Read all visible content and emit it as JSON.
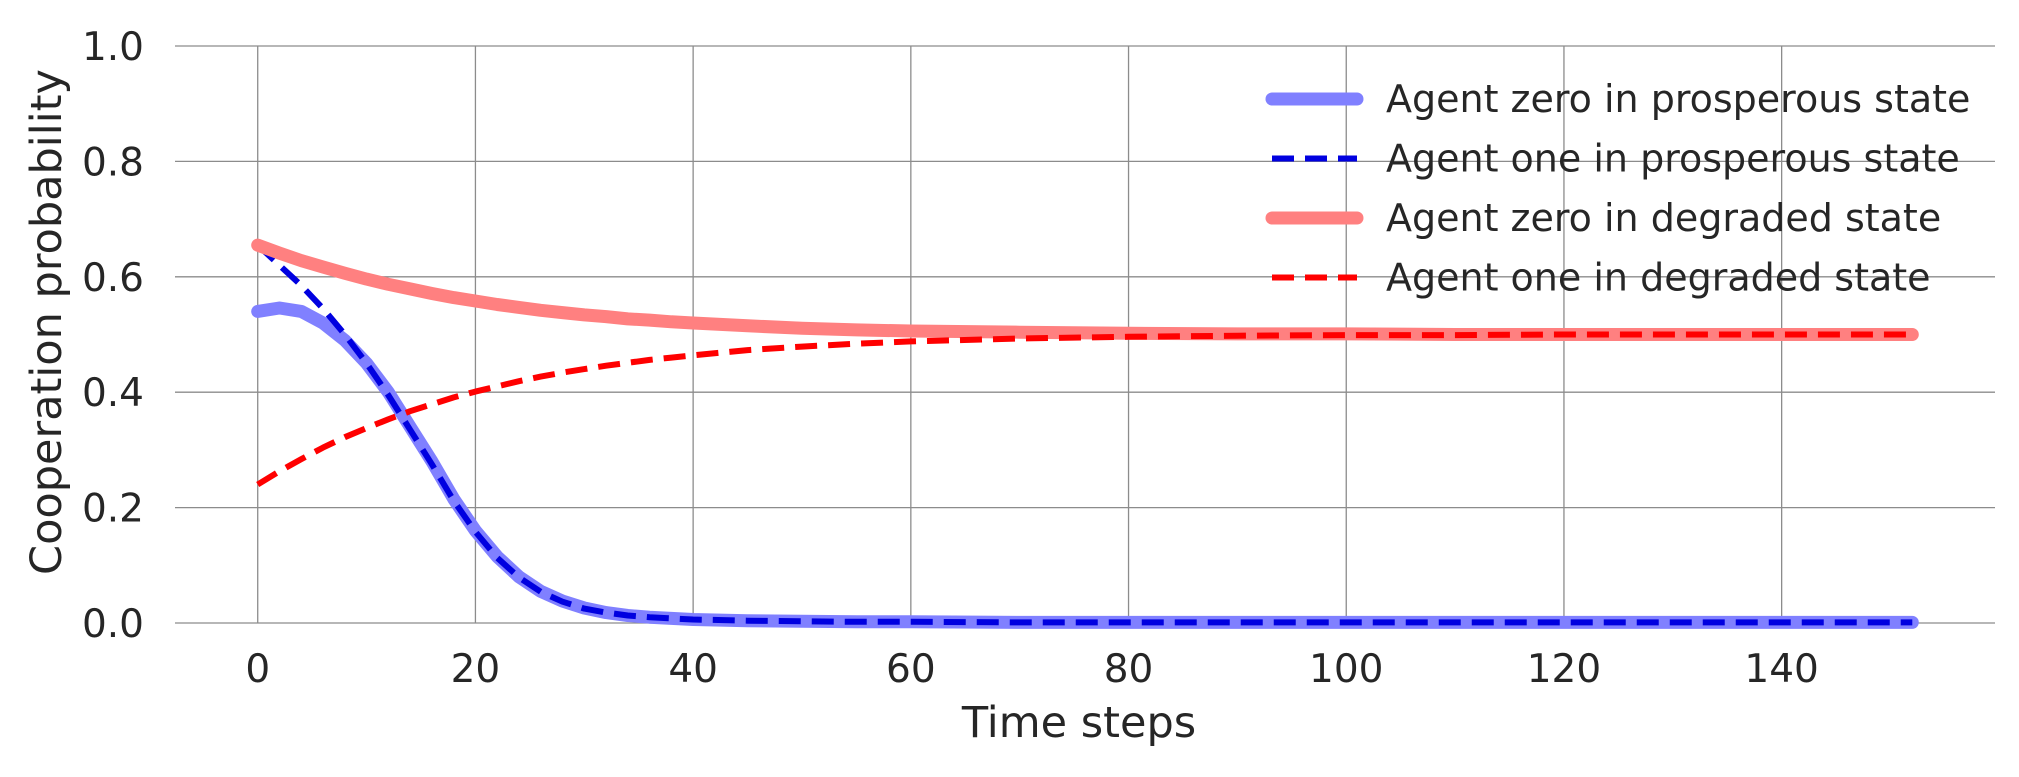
{
  "chart_data": {
    "type": "line",
    "title": "",
    "xlabel": "Time steps",
    "ylabel": "Cooperation probability",
    "xlim": [
      -7.6,
      159.6
    ],
    "ylim": [
      0,
      1
    ],
    "xticks": [
      0,
      20,
      40,
      60,
      80,
      100,
      120,
      140
    ],
    "xtick_labels": [
      "0",
      "20",
      "40",
      "60",
      "80",
      "100",
      "120",
      "140"
    ],
    "yticks": [
      0.0,
      0.2,
      0.4,
      0.6,
      0.8,
      1.0
    ],
    "ytick_labels": [
      "0.0",
      "0.2",
      "0.4",
      "0.6",
      "0.8",
      "1.0"
    ],
    "grid": true,
    "legend_position": "top-right",
    "x": [
      0,
      2,
      4,
      6,
      8,
      10,
      12,
      14,
      16,
      18,
      20,
      22,
      24,
      26,
      28,
      30,
      32,
      34,
      36,
      38,
      40,
      45,
      50,
      55,
      60,
      70,
      80,
      90,
      100,
      110,
      120,
      130,
      140,
      152
    ],
    "series": [
      {
        "name": "Agent zero in prosperous state",
        "color": "#8080ff",
        "style": "solid-thick",
        "values": [
          0.54,
          0.546,
          0.54,
          0.52,
          0.49,
          0.45,
          0.4,
          0.34,
          0.28,
          0.215,
          0.16,
          0.115,
          0.08,
          0.055,
          0.038,
          0.026,
          0.018,
          0.013,
          0.01,
          0.008,
          0.006,
          0.004,
          0.003,
          0.002,
          0.002,
          0.001,
          0.001,
          0.001,
          0.001,
          0.001,
          0.001,
          0.001,
          0.001,
          0.001
        ]
      },
      {
        "name": "Agent one in prosperous state",
        "color": "#0000e0",
        "style": "dashed",
        "values": [
          0.655,
          0.62,
          0.585,
          0.545,
          0.5,
          0.45,
          0.395,
          0.335,
          0.275,
          0.212,
          0.158,
          0.113,
          0.079,
          0.054,
          0.037,
          0.025,
          0.018,
          0.013,
          0.01,
          0.008,
          0.006,
          0.004,
          0.003,
          0.002,
          0.002,
          0.001,
          0.001,
          0.001,
          0.001,
          0.001,
          0.001,
          0.001,
          0.001,
          0.001
        ]
      },
      {
        "name": "Agent zero in degraded state",
        "color": "#ff8080",
        "style": "solid-thick",
        "values": [
          0.655,
          0.641,
          0.628,
          0.617,
          0.606,
          0.596,
          0.587,
          0.579,
          0.571,
          0.564,
          0.558,
          0.552,
          0.547,
          0.542,
          0.538,
          0.534,
          0.531,
          0.527,
          0.525,
          0.522,
          0.52,
          0.515,
          0.511,
          0.508,
          0.506,
          0.504,
          0.502,
          0.501,
          0.501,
          0.5,
          0.5,
          0.5,
          0.5,
          0.5
        ]
      },
      {
        "name": "Agent one in degraded state",
        "color": "#ff0000",
        "style": "dashed",
        "values": [
          0.24,
          0.263,
          0.284,
          0.304,
          0.322,
          0.338,
          0.353,
          0.367,
          0.379,
          0.391,
          0.401,
          0.41,
          0.419,
          0.427,
          0.434,
          0.44,
          0.446,
          0.451,
          0.456,
          0.46,
          0.464,
          0.473,
          0.479,
          0.484,
          0.488,
          0.493,
          0.496,
          0.498,
          0.499,
          0.499,
          0.5,
          0.5,
          0.5,
          0.5
        ]
      }
    ]
  }
}
